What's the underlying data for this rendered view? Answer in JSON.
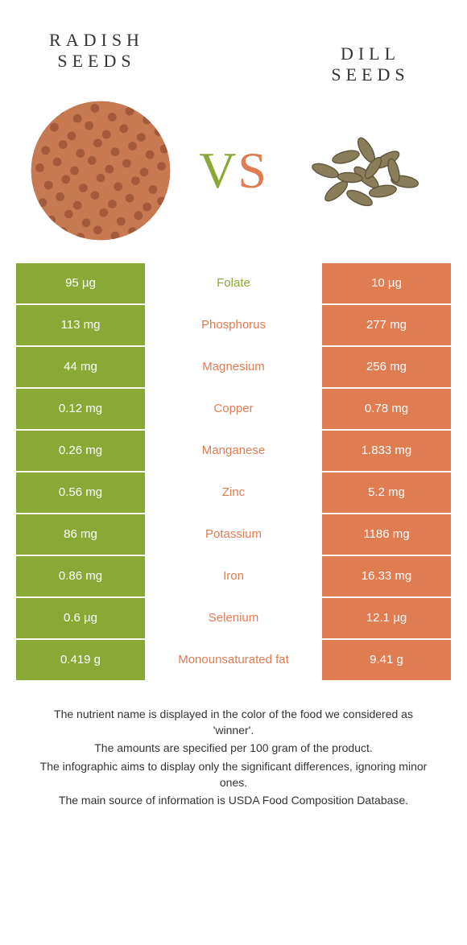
{
  "colors": {
    "green": "#8aa836",
    "orange": "#e07c52",
    "text": "#333333"
  },
  "header": {
    "left_title": "Radish seeds",
    "right_title": "Dill seeds",
    "vs_v": "V",
    "vs_s": "S"
  },
  "rows": [
    {
      "left": "95 µg",
      "mid": "Folate",
      "right": "10 µg",
      "winner": "left"
    },
    {
      "left": "113 mg",
      "mid": "Phosphorus",
      "right": "277 mg",
      "winner": "right"
    },
    {
      "left": "44 mg",
      "mid": "Magnesium",
      "right": "256 mg",
      "winner": "right"
    },
    {
      "left": "0.12 mg",
      "mid": "Copper",
      "right": "0.78 mg",
      "winner": "right"
    },
    {
      "left": "0.26 mg",
      "mid": "Manganese",
      "right": "1.833 mg",
      "winner": "right"
    },
    {
      "left": "0.56 mg",
      "mid": "Zinc",
      "right": "5.2 mg",
      "winner": "right"
    },
    {
      "left": "86 mg",
      "mid": "Potassium",
      "right": "1186 mg",
      "winner": "right"
    },
    {
      "left": "0.86 mg",
      "mid": "Iron",
      "right": "16.33 mg",
      "winner": "right"
    },
    {
      "left": "0.6 µg",
      "mid": "Selenium",
      "right": "12.1 µg",
      "winner": "right"
    },
    {
      "left": "0.419 g",
      "mid": "Monounsaturated fat",
      "right": "9.41 g",
      "winner": "right"
    }
  ],
  "footer": {
    "line1": "The nutrient name is displayed in the color of the food we considered as 'winner'.",
    "line2": "The amounts are specified per 100 gram of the product.",
    "line3": "The infographic aims to display only the significant differences, ignoring minor ones.",
    "line4": "The main source of information is USDA Food Composition Database."
  }
}
